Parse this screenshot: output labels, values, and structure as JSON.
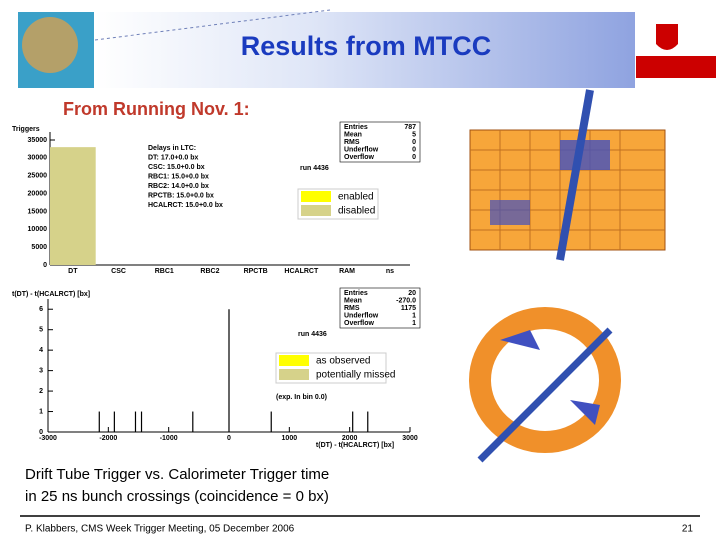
{
  "header": {
    "title": "Results from MTCC",
    "subtitle": "From Running Nov. 1:"
  },
  "chart_data": [
    {
      "type": "bar",
      "ylabel": "Triggers",
      "xlabel": "ns",
      "categories": [
        "DT",
        "CSC",
        "RBC1",
        "RBC2",
        "RPCTB",
        "HCALRCT",
        "RAM"
      ],
      "values": [
        33000,
        0,
        0,
        0,
        0,
        0,
        0
      ],
      "color": "#d6d28a",
      "ylim": [
        0,
        35000
      ],
      "yticks": [
        0,
        5000,
        10000,
        15000,
        20000,
        25000,
        30000,
        35000
      ],
      "run": "run 4436",
      "notes": [
        "Delays in LTC:",
        "DT: 17.0+0.0 bx",
        "CSC: 15.0+0.0 bx",
        "RBC1: 15.0+0.0 bx",
        "RBC2: 14.0+0.0 bx",
        "RPCTB: 15.0+0.0 bx",
        "HCALRCT: 15.0+0.0 bx"
      ],
      "stats": [
        {
          "label": "Entries",
          "value": "787"
        },
        {
          "label": "Mean",
          "value": "5"
        },
        {
          "label": "RMS",
          "value": "0"
        },
        {
          "label": "Underflow",
          "value": "0"
        },
        {
          "label": "Overflow",
          "value": "0"
        }
      ],
      "legend": [
        {
          "name": "enabled",
          "color": "#ffff00"
        },
        {
          "name": "disabled",
          "color": "#d6d28a"
        }
      ]
    },
    {
      "type": "histogram",
      "ylabel": "t(DT) - t(HCALRCT) [bx]",
      "xlabel": "t(DT) - t(HCALRCT) [bx]",
      "x": [
        -2150,
        -1900,
        -1550,
        -1450,
        -600,
        0,
        700,
        2050,
        2300
      ],
      "values": [
        1,
        1,
        1,
        1,
        1,
        6,
        1,
        1,
        1
      ],
      "color": "#000000",
      "xlim": [
        -3000,
        3000
      ],
      "xticks": [
        -3000,
        -2000,
        -1000,
        0,
        1000,
        2000,
        3000
      ],
      "ylim": [
        0,
        6.5
      ],
      "yticks": [
        0,
        1,
        2,
        3,
        4,
        5,
        6
      ],
      "run": "run 4436",
      "note": "(exp. In bin 0.0)",
      "stats": [
        {
          "label": "Entries",
          "value": "20"
        },
        {
          "label": "Mean",
          "value": "-270.0"
        },
        {
          "label": "RMS",
          "value": "1175"
        },
        {
          "label": "Underflow",
          "value": "1"
        },
        {
          "label": "Overflow",
          "value": "1"
        }
      ],
      "legend": [
        {
          "name": "as observed",
          "color": "#ffff00"
        },
        {
          "name": "potentially missed",
          "color": "#d6d28a"
        }
      ]
    }
  ],
  "caption": [
    "Drift Tube Trigger vs. Calorimeter Trigger time",
    "in 25 ns bunch crossings (coincidence = 0 bx)"
  ],
  "footer": {
    "text": "P. Klabbers, CMS Week Trigger Meeting, 05 December 2006",
    "page": 21
  }
}
